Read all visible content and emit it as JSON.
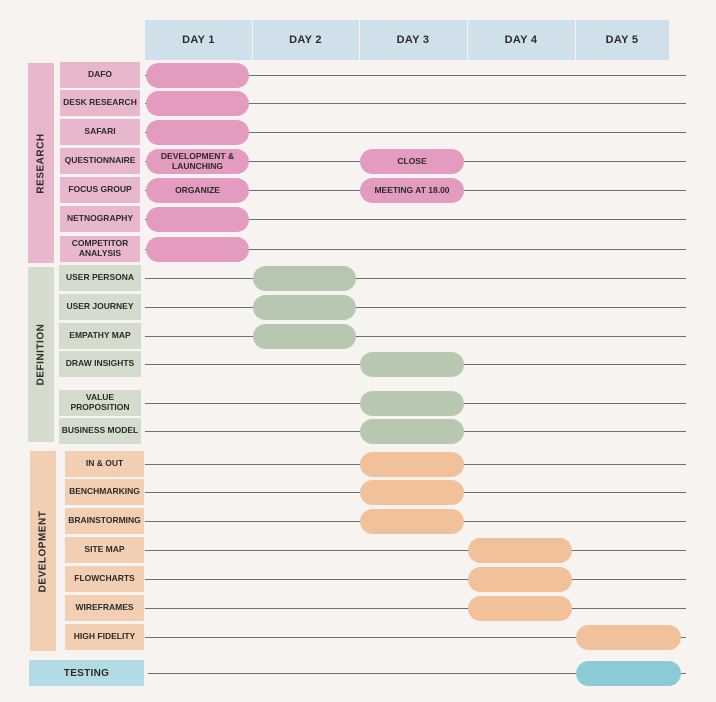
{
  "days": [
    "DAY 1",
    "DAY 2",
    "DAY 3",
    "DAY 4",
    "DAY 5"
  ],
  "phases": {
    "research": "RESEARCH",
    "definition": "DEFINITION",
    "development": "DEVELOPMENT",
    "testing": "TESTING"
  },
  "tasks": [
    {
      "label": "DAFO",
      "phase": "research",
      "bars": [
        {
          "start": 1,
          "end": 1,
          "text": ""
        }
      ]
    },
    {
      "label": "DESK RESEARCH",
      "phase": "research",
      "bars": [
        {
          "start": 1,
          "end": 1,
          "text": ""
        }
      ]
    },
    {
      "label": "SAFARI",
      "phase": "research",
      "bars": [
        {
          "start": 1,
          "end": 1,
          "text": ""
        }
      ]
    },
    {
      "label": "QUESTIONNAIRE",
      "phase": "research",
      "bars": [
        {
          "start": 1,
          "end": 1,
          "text": "DEVELOPMENT & LAUNCHING"
        },
        {
          "start": 3,
          "end": 3,
          "text": "CLOSE"
        }
      ]
    },
    {
      "label": "FOCUS GROUP",
      "phase": "research",
      "bars": [
        {
          "start": 1,
          "end": 1,
          "text": "ORGANIZE"
        },
        {
          "start": 3,
          "end": 3,
          "text": "MEETING AT 18.00"
        }
      ]
    },
    {
      "label": "NETNOGRAPHY",
      "phase": "research",
      "bars": [
        {
          "start": 1,
          "end": 1,
          "text": ""
        }
      ]
    },
    {
      "label": "COMPETITOR ANALYSIS",
      "phase": "research",
      "bars": [
        {
          "start": 1,
          "end": 1,
          "text": ""
        }
      ]
    },
    {
      "label": "USER PERSONA",
      "phase": "definition",
      "bars": [
        {
          "start": 2,
          "end": 2,
          "text": ""
        }
      ]
    },
    {
      "label": "USER JOURNEY",
      "phase": "definition",
      "bars": [
        {
          "start": 2,
          "end": 2,
          "text": ""
        }
      ]
    },
    {
      "label": "EMPATHY MAP",
      "phase": "definition",
      "bars": [
        {
          "start": 2,
          "end": 2,
          "text": ""
        }
      ]
    },
    {
      "label": "DRAW INSIGHTS",
      "phase": "definition",
      "bars": [
        {
          "start": 3,
          "end": 3,
          "text": ""
        }
      ]
    },
    {
      "label": "VALUE PROPOSITION",
      "phase": "definition",
      "bars": [
        {
          "start": 3,
          "end": 3,
          "text": ""
        }
      ]
    },
    {
      "label": "BUSINESS MODEL",
      "phase": "definition",
      "bars": [
        {
          "start": 3,
          "end": 3,
          "text": ""
        }
      ]
    },
    {
      "label": "IN & OUT",
      "phase": "development",
      "bars": [
        {
          "start": 3,
          "end": 3,
          "text": ""
        }
      ]
    },
    {
      "label": "BENCHMARKING",
      "phase": "development",
      "bars": [
        {
          "start": 3,
          "end": 3,
          "text": ""
        }
      ]
    },
    {
      "label": "BRAINSTORMING",
      "phase": "development",
      "bars": [
        {
          "start": 3,
          "end": 3,
          "text": ""
        }
      ]
    },
    {
      "label": "SITE MAP",
      "phase": "development",
      "bars": [
        {
          "start": 4,
          "end": 4,
          "text": ""
        }
      ]
    },
    {
      "label": "FLOWCHARTS",
      "phase": "development",
      "bars": [
        {
          "start": 4,
          "end": 4,
          "text": ""
        }
      ]
    },
    {
      "label": "WIREFRAMES",
      "phase": "development",
      "bars": [
        {
          "start": 4,
          "end": 4,
          "text": ""
        }
      ]
    },
    {
      "label": "HIGH FIDELITY",
      "phase": "development",
      "bars": [
        {
          "start": 5,
          "end": 5,
          "text": ""
        }
      ]
    },
    {
      "label": "",
      "phase": "testing",
      "bars": [
        {
          "start": 5,
          "end": 5,
          "text": ""
        }
      ]
    }
  ],
  "colors": {
    "research": "#e39bbf",
    "definition": "#b8c8b0",
    "development": "#f0c19b",
    "testing": "#8ccbd6",
    "header": "#cfe0ea"
  }
}
